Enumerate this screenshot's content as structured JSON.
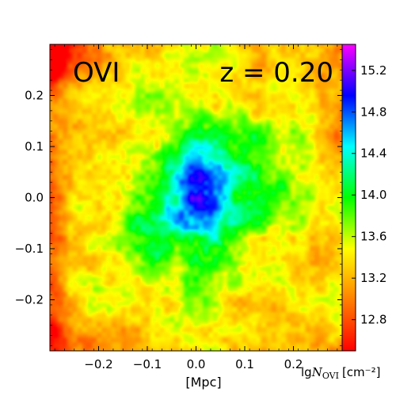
{
  "chart_data": {
    "type": "heatmap",
    "title": "",
    "annotations": {
      "ion": "OVI",
      "redshift": "z = 0.20"
    },
    "xlabel": "[Mpc]",
    "ylabel": "",
    "xlim": [
      -0.3,
      0.3
    ],
    "ylim": [
      -0.3,
      0.3
    ],
    "x_ticks": [
      -0.2,
      -0.1,
      0.0,
      0.1,
      0.2
    ],
    "x_tick_labels": [
      "−0.2",
      "−0.1",
      "0.0",
      "0.1",
      "0.2"
    ],
    "y_ticks": [
      0.2,
      0.1,
      0.0,
      -0.1,
      -0.2
    ],
    "y_tick_labels": [
      "0.2",
      "0.1",
      "0.0",
      "−0.1",
      "−0.2"
    ],
    "colorbar": {
      "label_prefix": "lg",
      "label_symbol": "N",
      "label_subscript": "OVI",
      "label_units": "[cm⁻²]",
      "range": [
        12.5,
        15.45
      ],
      "ticks": [
        15.2,
        14.8,
        14.4,
        14.0,
        13.6,
        13.2,
        12.8
      ],
      "tick_labels": [
        "15.2",
        "14.8",
        "14.4",
        "14.0",
        "13.6",
        "13.2",
        "12.8"
      ],
      "colormap": "gist_rainbow_r",
      "colormap_stops": [
        "#ff0000",
        "#ff8000",
        "#ffff00",
        "#00ff00",
        "#00ffff",
        "#0000ff",
        "#ff00ff"
      ]
    },
    "field": {
      "description_of_structure": "radially declining column density, peak near center",
      "center": [
        0.01,
        -0.01
      ],
      "peak_value": 15.2,
      "background_value": 13.2,
      "corner_value_top_left": 12.6,
      "corner_value_bottom_left": 12.9
    },
    "grid": false,
    "legend": "none"
  }
}
